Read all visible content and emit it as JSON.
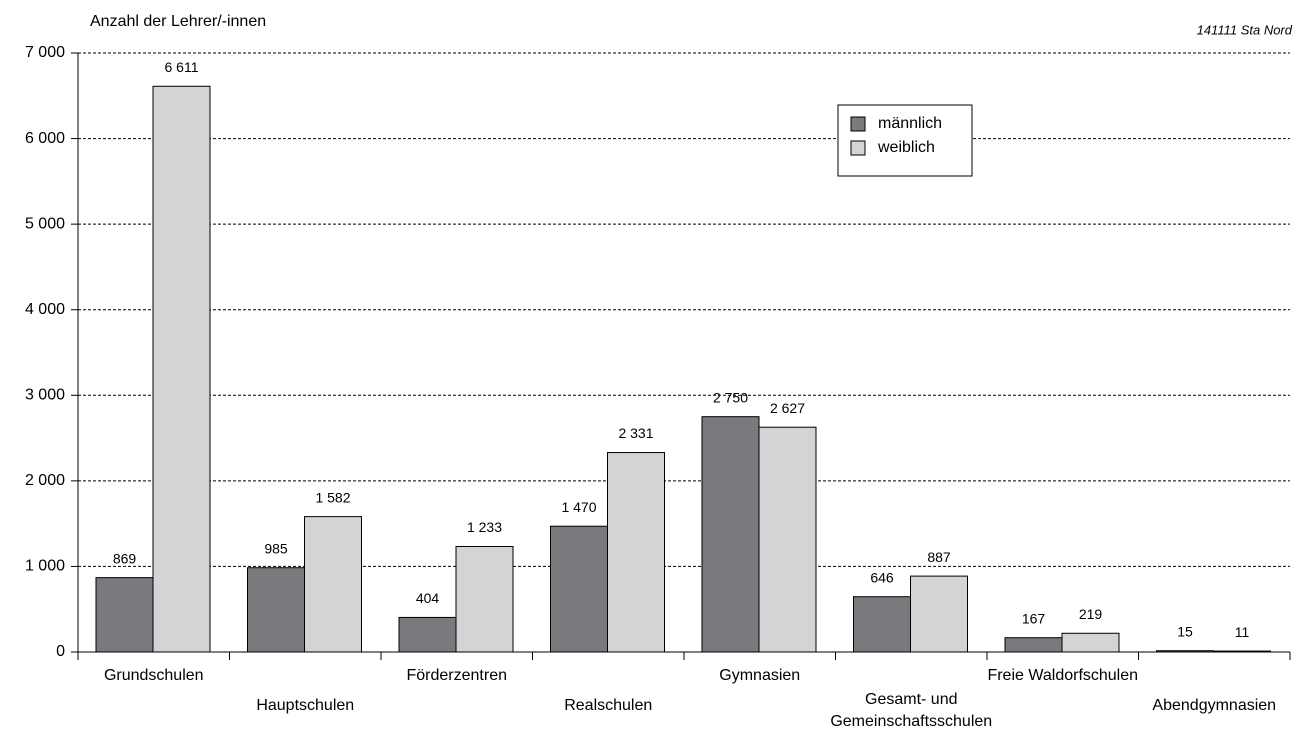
{
  "chart_data": {
    "type": "bar",
    "y_axis_label": "Anzahl der Lehrer/-innen",
    "source": "141111 Sta Nord",
    "categories": [
      "Grundschulen",
      "Hauptschulen",
      "Förderzentren",
      "Realschulen",
      "Gymnasien",
      "Gesamt- und\nGemeinschaftsschulen",
      "Freie Waldorfschulen",
      "Abendgymnasien"
    ],
    "series": [
      {
        "name": "männlich",
        "color": "#7a7a7e",
        "values": [
          869,
          985,
          404,
          1470,
          2750,
          646,
          167,
          15
        ],
        "value_labels": [
          "869",
          "985",
          "404",
          "1 470",
          "2 750",
          "646",
          "167",
          "15"
        ]
      },
      {
        "name": "weiblich",
        "color": "#d4d4d6",
        "values": [
          6611,
          1582,
          1233,
          2331,
          2627,
          887,
          219,
          11
        ],
        "value_labels": [
          "6 611",
          "1 582",
          "1 233",
          "2 331",
          "2 627",
          "887",
          "219",
          "11"
        ]
      }
    ],
    "ylim": [
      0,
      7000
    ],
    "yticks": [
      0,
      {
        "value": 1000,
        "label": "1 000"
      },
      {
        "value": 2000,
        "label": "2 000"
      },
      {
        "value": 3000,
        "label": "3 000"
      },
      {
        "value": 4000,
        "label": "4 000"
      },
      {
        "value": 5000,
        "label": "5 000"
      },
      {
        "value": 6000,
        "label": "6 000"
      },
      {
        "value": 7000,
        "label": "7 000"
      }
    ],
    "grid": true
  }
}
